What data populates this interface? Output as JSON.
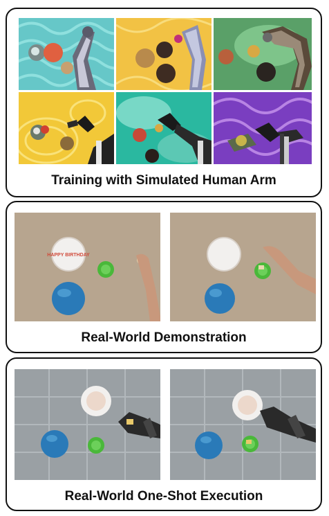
{
  "panels": {
    "sim": {
      "caption": "Training with Simulated Human Arm"
    },
    "demo": {
      "caption": "Real-World Demonstration"
    },
    "exec": {
      "caption": "Real-World One-Shot Execution"
    }
  },
  "plate_text": "HAPPY BIRTHDAY"
}
